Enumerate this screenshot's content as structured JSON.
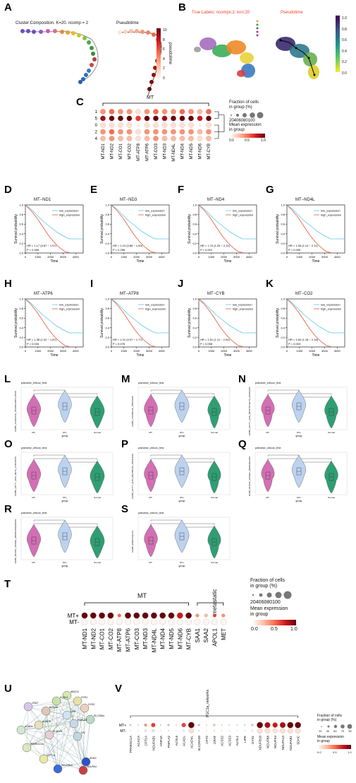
{
  "panels": {
    "A": {
      "letter": "A",
      "left_title": "Cluster Composition. K=20. ncomp = 2",
      "right_title": "Pseudotime",
      "colorbar_label": "pseudotime",
      "colorbar_ticks": [
        "10",
        "8",
        "6",
        "4",
        "2",
        "0"
      ]
    },
    "B": {
      "letter": "B",
      "left_title": "True Labels: ncomps:2. knn:20",
      "right_title": "Pseudotime",
      "colorbar_ticks": [
        "1.0",
        "0.8",
        "0.6",
        "0.4",
        "0.2",
        "0.0"
      ]
    },
    "C": {
      "letter": "C",
      "group_label": "MT",
      "rows": [
        "1",
        "5",
        "0",
        "2",
        "4"
      ],
      "genes": [
        "MT-ND1",
        "MT-ND2",
        "MT-CO1",
        "MT-CO2",
        "MT-ATP8",
        "MT-ATP6",
        "MT-CO3",
        "MT-ND3",
        "MT-ND4L",
        "MT-ND4",
        "MT-ND5",
        "MT-ND6",
        "MT-CYB"
      ],
      "legend_fraction_title": "Fraction of cells\nin group (%)",
      "legend_fraction_ticks": "20406080100",
      "legend_expr_title": "Mean expression\nin group",
      "legend_expr_ticks": [
        "0.0",
        "0.5",
        "1.0"
      ]
    },
    "survival": [
      {
        "letter": "D",
        "title": "MT−ND1",
        "stats": "HR = 1.17 (0.87 − 1.57)",
        "p": "P = 0.308"
      },
      {
        "letter": "E",
        "title": "MT−ND3",
        "stats": "HR = 1.19 (0.88 − 1.60)",
        "p": "P = 0.256"
      },
      {
        "letter": "F",
        "title": "MT−ND4",
        "stats": "HR = 1.70 (1.25 − 2.31)",
        "p": "P < 0.001"
      },
      {
        "letter": "G",
        "title": "MT−ND4L",
        "stats": "HR = 1.55 (1.14 − 2.11)",
        "p": "P = 0.005"
      },
      {
        "letter": "H",
        "title": "MT−ATP6",
        "stats": "HR = 1.38 (1.02 − 1.87)",
        "p": "P = 0.034"
      },
      {
        "letter": "I",
        "title": "MT−ATP8",
        "stats": "HR = 1.31 (0.97 − 1.77)",
        "p": "P = 0.076"
      },
      {
        "letter": "J",
        "title": "MT−CYB",
        "stats": "HR = 1.51 (1.11 − 2.04)",
        "p": "P = 0.008"
      },
      {
        "letter": "K",
        "title": "MT−CO2",
        "stats": "HR = 1.60 (1.18 − 2.18)",
        "p": "P = 0.003"
      }
    ],
    "survival_common": {
      "ylabel": "Survival probability",
      "xlabel": "Time",
      "legend_low": "low_expression",
      "legend_high": "high_expression",
      "yticks": [
        "1.0",
        "0.8",
        "0.6",
        "0.4",
        "0.2",
        "0.0"
      ],
      "xticks": [
        "0",
        "1000",
        "2000",
        "3000",
        "4000"
      ],
      "low_color": "#5bc8e6",
      "high_color": "#e8583a"
    },
    "violins": [
      {
        "letter": "L",
        "title": "pairwise_wilcox_test",
        "ylabel": "GOBP_OXIDATIVE_PHOSPHORYLATION"
      },
      {
        "letter": "M",
        "title": "pairwise_wilcox_test",
        "ylabel": "GOBP_CATABOLIC_PROCESS"
      },
      {
        "letter": "N",
        "title": "pairwise_wilcox_test",
        "ylabel": "GOBP_FATTY_ACID_BIOSYNTHETIC_PROCESS"
      },
      {
        "letter": "O",
        "title": "pairwise_wilcox_test",
        "ylabel": "GOBP_FATTY_ACID_BETA_OXIDATION"
      },
      {
        "letter": "P",
        "title": "pairwise_wilcox_test",
        "ylabel": "GOBP_FATTY_ACID_METABOLIC_PROCESS"
      },
      {
        "letter": "Q",
        "title": "pairwise_wilcox_test",
        "ylabel": "GOBP_BLOOD_VESSEL_REMODELING"
      },
      {
        "letter": "R",
        "title": "pairwise_wilcox_test",
        "ylabel": "GOBP_BLOOD_VESSEL_MORPHOGENESIS"
      },
      {
        "letter": "S",
        "title": "pairwise_wilcox_test",
        "ylabel": "GOBP_ENDOTHELIAL"
      }
    ],
    "violin_common": {
      "xlabel": "group",
      "groups": [
        "MT-",
        "MT+",
        "Normal"
      ],
      "colors": [
        "#d36fb4",
        "#bcd2ef",
        "#2f9e73"
      ]
    },
    "T": {
      "letter": "T",
      "group_mt": "MT",
      "group_meta": "metastatic",
      "rows": [
        "MT+",
        "MT-"
      ],
      "genes": [
        "MT-ND1",
        "MT-ND2",
        "MT-CO1",
        "MT-CO2",
        "MT-ATP8",
        "MT-ATP6",
        "MT-CO3",
        "MT-ND3",
        "MT-ND4L",
        "MT-ND4",
        "MT-ND5",
        "MT-ND6",
        "MT-CYB",
        "SAA1",
        "SAA2",
        "APOL1",
        "MET"
      ],
      "legend_fraction_title": "Fraction of cells\nin group (%)",
      "legend_fraction_ticks": "20406080100",
      "legend_expr_title": "Mean expression\nin group",
      "legend_expr_ticks": [
        "0.0",
        "0.5",
        "1.0"
      ]
    },
    "U": {
      "letter": "U",
      "nodes": [
        "ABCD2",
        "ACSL3",
        "GYS1",
        "GYS2",
        "LIPE",
        "SLC25A4",
        "CRAT",
        "ACACA",
        "PNPLA2",
        "ACACB",
        "ACADL",
        "ACADVL",
        "LPL",
        "PPARGC1A",
        "SDHC",
        "NDUFA4",
        "NDUFB10",
        "CPT1A"
      ]
    },
    "V": {
      "letter": "V",
      "group_label": "PGC1a_networks",
      "rows": [
        "MT+",
        "MT-"
      ],
      "genes": [
        "PPARGC1A",
        "ACACA",
        "CPT1A",
        "NDUFAB1",
        "HNF4A",
        "PNPLA2",
        "ACSL6",
        "ACADL",
        "ACADVL",
        "SLC25A20",
        "CPT2",
        "CRAT",
        "ACSS2",
        "ACSS3",
        "ACSL1",
        "LIPE",
        "GYS1",
        "NDUFB10",
        "NDUFB8",
        "NDUFS4",
        "NDUFA13",
        "NDUFAB1",
        "SDHC"
      ],
      "legend_fraction_title": "Fraction of cells\nin group (%)",
      "legend_fraction_ticks": [
        "10",
        "30",
        "50",
        "70",
        "90"
      ],
      "legend_expr_title": "Mean expression\nin group",
      "legend_expr_ticks": [
        "0.0",
        "0.5",
        "1.0"
      ]
    }
  }
}
